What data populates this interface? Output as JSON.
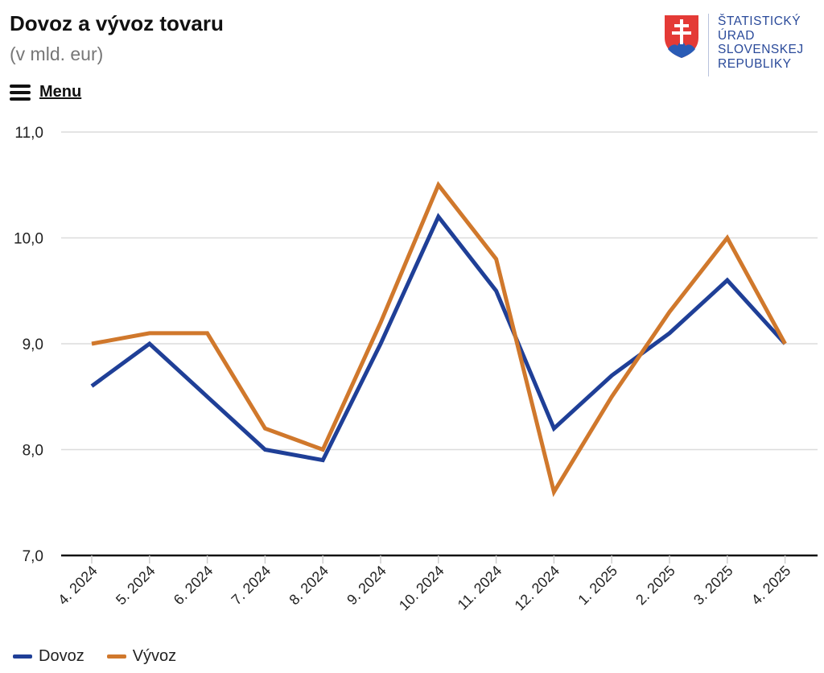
{
  "header": {
    "title": "Dovoz a vývoz tovaru",
    "subtitle": "(v mld. eur)",
    "menu_label": "Menu"
  },
  "logo": {
    "lines": [
      "ŠTATISTICKÝ",
      "ÚRAD",
      "SLOVENSKEJ",
      "REPUBLIKY"
    ],
    "text_color": "#2a4a9a"
  },
  "chart_data": {
    "type": "line",
    "categories": [
      "4. 2024",
      "5. 2024",
      "6. 2024",
      "7. 2024",
      "8. 2024",
      "9. 2024",
      "10. 2024",
      "11. 2024",
      "12. 2024",
      "1. 2025",
      "2. 2025",
      "3. 2025",
      "4. 2025"
    ],
    "series": [
      {
        "name": "Dovoz",
        "color": "#1f3f97",
        "values": [
          8.6,
          9.0,
          8.5,
          8.0,
          7.9,
          9.0,
          10.2,
          9.5,
          8.2,
          8.7,
          9.1,
          9.6,
          9.0
        ]
      },
      {
        "name": "Vývoz",
        "color": "#d0782c",
        "values": [
          9.0,
          9.1,
          9.1,
          8.2,
          8.0,
          9.2,
          10.5,
          9.8,
          7.6,
          8.5,
          9.3,
          10.0,
          9.0
        ]
      }
    ],
    "y_ticks": [
      "7,0",
      "8,0",
      "9,0",
      "10,0",
      "11,0"
    ],
    "ylim": [
      7,
      11
    ],
    "xlabel": "",
    "ylabel": "",
    "grid": true,
    "legend": "bottom-left"
  }
}
